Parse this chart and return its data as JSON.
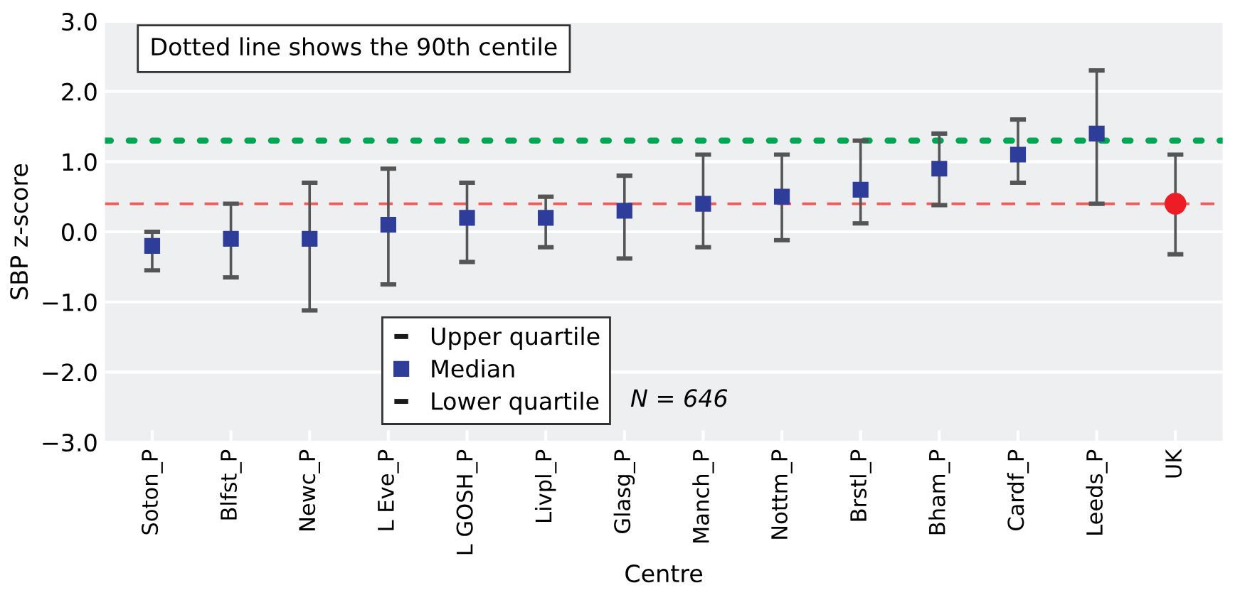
{
  "chart_data": {
    "type": "scatter",
    "xlabel": "Centre",
    "ylabel": "SBP z-score",
    "categories": [
      "Soton_P",
      "Blfst_P",
      "Newc_P",
      "L Eve_P",
      "L GOSH_P",
      "Livpl_P",
      "Glasg_P",
      "Manch_P",
      "Nottm_P",
      "Brstl_P",
      "Bham_P",
      "Cardf_P",
      "Leeds_P",
      "UK"
    ],
    "series": [
      {
        "name": "Median",
        "color": "#2e3d99",
        "marker": "square",
        "values": [
          -0.2,
          -0.1,
          -0.1,
          0.1,
          0.2,
          0.2,
          0.3,
          0.4,
          0.5,
          0.6,
          0.9,
          1.1,
          1.4,
          null
        ],
        "errors": [
          [
            -0.55,
            0.0
          ],
          [
            -0.65,
            0.4
          ],
          [
            -1.12,
            0.7
          ],
          [
            -0.75,
            0.9
          ],
          [
            -0.43,
            0.7
          ],
          [
            -0.22,
            0.5
          ],
          [
            -0.38,
            0.8
          ],
          [
            -0.22,
            1.1
          ],
          [
            -0.12,
            1.1
          ],
          [
            0.12,
            1.3
          ],
          [
            0.38,
            1.4
          ],
          [
            0.7,
            1.6
          ],
          [
            0.4,
            2.3
          ],
          null
        ]
      },
      {
        "color": "#ee1c24",
        "marker": "circle",
        "values": [
          null,
          null,
          null,
          null,
          null,
          null,
          null,
          null,
          null,
          null,
          null,
          null,
          null,
          0.4
        ],
        "errors": [
          null,
          null,
          null,
          null,
          null,
          null,
          null,
          null,
          null,
          null,
          null,
          null,
          null,
          [
            -0.32,
            1.1
          ]
        ]
      }
    ],
    "ylim": [
      -3.0,
      3.0
    ],
    "yticks": [
      {
        "value": -3,
        "label": "−3.0"
      },
      {
        "value": -2,
        "label": "−2.0"
      },
      {
        "value": -1,
        "label": "−1.0"
      },
      {
        "value": 0,
        "label": "0.0"
      },
      {
        "value": 1,
        "label": "1.0"
      },
      {
        "value": 2,
        "label": "2.0"
      },
      {
        "value": 3,
        "label": "3.0"
      }
    ],
    "ref_lines": [
      {
        "axis": "y",
        "value": 1.3,
        "color": "#00a651",
        "line_style": "dotted"
      },
      {
        "axis": "y",
        "value": 0.4,
        "color": "#f05a5a",
        "line_style": "dashed"
      }
    ],
    "annotations": [
      "Dotted line shows the 90th centile",
      "N = 646",
      "Upper quartile",
      "Lower quartile"
    ],
    "grid": "y",
    "legend": "bottom"
  }
}
